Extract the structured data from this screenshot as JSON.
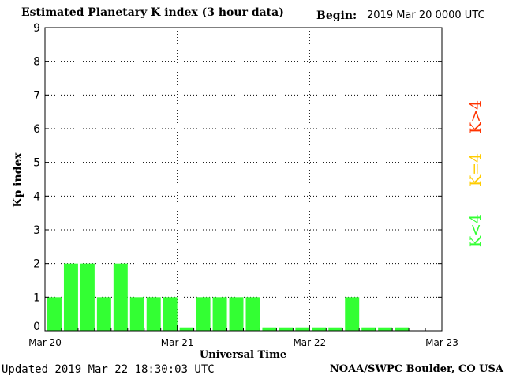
{
  "header": {
    "title": "Estimated Planetary K index (3 hour data)",
    "begin_label": "Begin:",
    "begin_value": "2019 Mar 20 0000 UTC"
  },
  "footer": {
    "updated": "Updated 2019 Mar 22 18:30:03 UTC",
    "credit": "NOAA/SWPC Boulder, CO USA"
  },
  "legend": {
    "items": [
      {
        "label": "K>4",
        "color": "#ff3300"
      },
      {
        "label": "K=4",
        "color": "#ffcc00"
      },
      {
        "label": "K<4",
        "color": "#33ff33"
      }
    ]
  },
  "chart_data": {
    "type": "bar",
    "title": "Estimated Planetary K index (3 hour data)",
    "xlabel": "Universal Time",
    "ylabel": "Kp index",
    "ylim": [
      0,
      9
    ],
    "yticks": [
      "0",
      "1",
      "2",
      "3",
      "4",
      "5",
      "6",
      "7",
      "8",
      "9"
    ],
    "x_tick_labels": [
      "Mar 20",
      "Mar 21",
      "Mar 22",
      "Mar 23"
    ],
    "x_period_hours": 3,
    "values": [
      1,
      2,
      2,
      1,
      2,
      1,
      1,
      1,
      0.1,
      1,
      1,
      1,
      1,
      0.1,
      0.1,
      0.1,
      0.1,
      0.1,
      1,
      0.1,
      0.1,
      0.1
    ],
    "bar_color": "#33ff33",
    "grid": true
  }
}
